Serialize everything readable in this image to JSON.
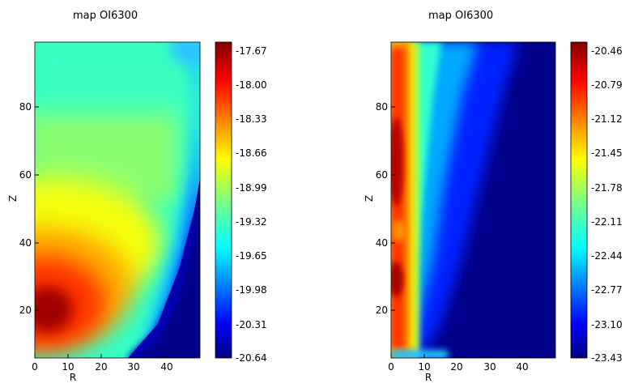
{
  "chart_data": [
    {
      "type": "heatmap",
      "title": "map OI6300",
      "xlabel": "R",
      "ylabel": "Z",
      "xlim": [
        0,
        50
      ],
      "ylim": [
        5,
        100
      ],
      "xticks": [
        0,
        10,
        20,
        30,
        40
      ],
      "yticks": [
        20,
        40,
        60,
        80
      ],
      "colormap": "jet",
      "colorbar": {
        "min": -20.64,
        "max": -17.67,
        "ticks": [
          "-17.67",
          "-18.00",
          "-18.33",
          "-18.66",
          "-18.99",
          "-19.32",
          "-19.65",
          "-19.98",
          "-20.31",
          "-20.64"
        ]
      },
      "description_of_field": "peak near R=5, Z=20; decreasing outward; dark blue region for R>30 at low Z"
    },
    {
      "type": "heatmap",
      "title": "map OI6300",
      "xlabel": "R",
      "ylabel": "Z",
      "xlim": [
        0,
        50
      ],
      "ylim": [
        5,
        100
      ],
      "xticks": [
        0,
        10,
        20,
        30,
        40
      ],
      "yticks": [
        20,
        40,
        60,
        80
      ],
      "colormap": "jet",
      "colorbar": {
        "min": -23.43,
        "max": -20.46,
        "ticks": [
          "-20.46",
          "-20.79",
          "-21.12",
          "-21.45",
          "-21.78",
          "-22.11",
          "-22.44",
          "-22.77",
          "-23.10",
          "-23.43"
        ]
      },
      "description_of_field": "emission concentrated near R<8 with peaks near Z=30 and Z=60-70; dark blue beyond R~25"
    }
  ]
}
